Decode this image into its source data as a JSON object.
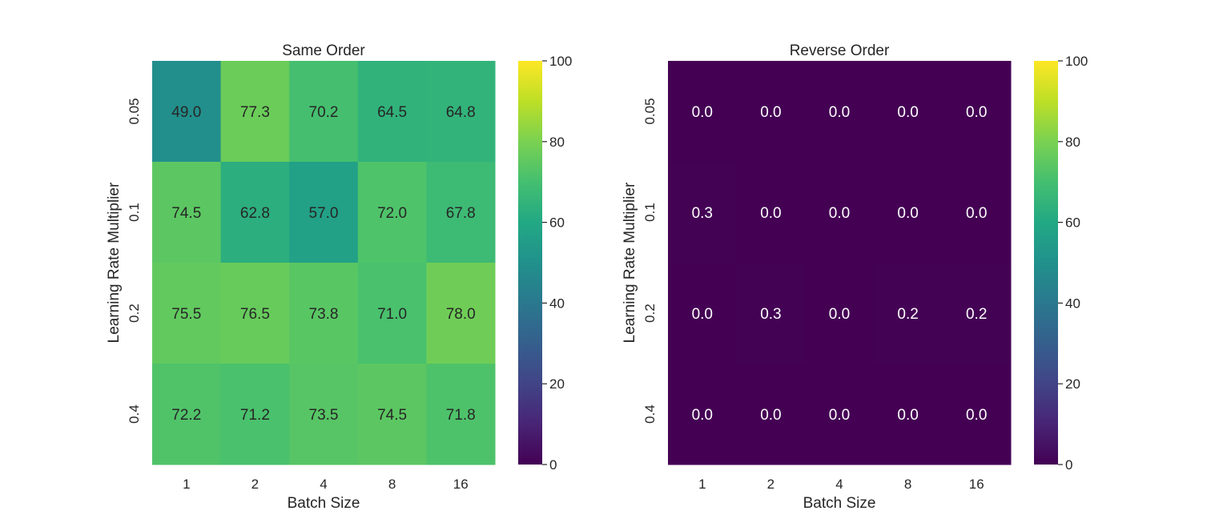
{
  "chart_data": [
    {
      "type": "heatmap",
      "title": "Same Order",
      "xlabel": "Batch Size",
      "ylabel": "Learning Rate Multiplier",
      "x_categories": [
        "1",
        "2",
        "4",
        "8",
        "16"
      ],
      "y_categories": [
        "0.05",
        "0.1",
        "0.2",
        "0.4"
      ],
      "values": [
        [
          49.0,
          77.3,
          70.2,
          64.5,
          64.8
        ],
        [
          74.5,
          62.8,
          57.0,
          72.0,
          67.8
        ],
        [
          75.5,
          76.5,
          73.8,
          71.0,
          78.0
        ],
        [
          72.2,
          71.2,
          73.5,
          74.5,
          71.8
        ]
      ],
      "value_labels": [
        [
          "49.0",
          "77.3",
          "70.2",
          "64.5",
          "64.8"
        ],
        [
          "74.5",
          "62.8",
          "57.0",
          "72.0",
          "67.8"
        ],
        [
          "75.5",
          "76.5",
          "73.8",
          "71.0",
          "78.0"
        ],
        [
          "72.2",
          "71.2",
          "73.5",
          "74.5",
          "71.8"
        ]
      ],
      "colormap": "viridis",
      "vmin": 0,
      "vmax": 100,
      "colorbar_ticks": [
        "0",
        "20",
        "40",
        "60",
        "80",
        "100"
      ]
    },
    {
      "type": "heatmap",
      "title": "Reverse Order",
      "xlabel": "Batch Size",
      "ylabel": "Learning Rate Multiplier",
      "x_categories": [
        "1",
        "2",
        "4",
        "8",
        "16"
      ],
      "y_categories": [
        "0.05",
        "0.1",
        "0.2",
        "0.4"
      ],
      "values": [
        [
          0.0,
          0.0,
          0.0,
          0.0,
          0.0
        ],
        [
          0.3,
          0.0,
          0.0,
          0.0,
          0.0
        ],
        [
          0.0,
          0.3,
          0.0,
          0.2,
          0.2
        ],
        [
          0.0,
          0.0,
          0.0,
          0.0,
          0.0
        ]
      ],
      "value_labels": [
        [
          "0.0",
          "0.0",
          "0.0",
          "0.0",
          "0.0"
        ],
        [
          "0.3",
          "0.0",
          "0.0",
          "0.0",
          "0.0"
        ],
        [
          "0.0",
          "0.3",
          "0.0",
          "0.2",
          "0.2"
        ],
        [
          "0.0",
          "0.0",
          "0.0",
          "0.0",
          "0.0"
        ]
      ],
      "colormap": "viridis",
      "vmin": 0,
      "vmax": 100,
      "colorbar_ticks": [
        "0",
        "20",
        "40",
        "60",
        "80",
        "100"
      ]
    }
  ]
}
